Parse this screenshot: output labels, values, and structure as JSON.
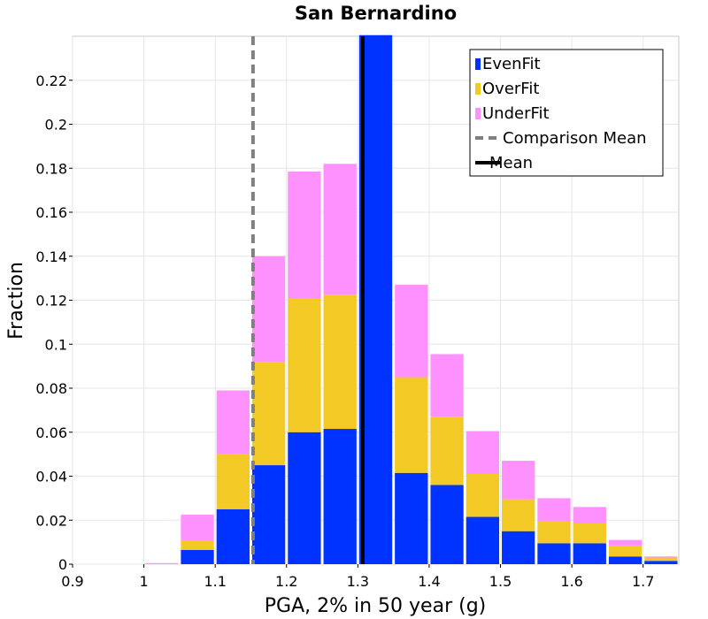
{
  "chart_data": {
    "type": "bar",
    "stacked": true,
    "title": "San Bernardino",
    "xlabel": "PGA, 2% in 50 year (g)",
    "ylabel": "Fraction",
    "xlim": [
      0.9,
      1.75
    ],
    "ylim": [
      0,
      0.24
    ],
    "grid": true,
    "legend_position": "top-right",
    "bin_width": 0.05,
    "x_ticks": [
      {
        "value": 0.9,
        "label": "0.9"
      },
      {
        "value": 1.0,
        "label": "1"
      },
      {
        "value": 1.1,
        "label": "1.1"
      },
      {
        "value": 1.2,
        "label": "1.2"
      },
      {
        "value": 1.3,
        "label": "1.3"
      },
      {
        "value": 1.4,
        "label": "1.4"
      },
      {
        "value": 1.5,
        "label": "1.5"
      },
      {
        "value": 1.6,
        "label": "1.6"
      },
      {
        "value": 1.7,
        "label": "1.7"
      }
    ],
    "y_ticks": [
      {
        "value": 0,
        "label": "0"
      },
      {
        "value": 0.02,
        "label": "0.02"
      },
      {
        "value": 0.04,
        "label": "0.04"
      },
      {
        "value": 0.06,
        "label": "0.06"
      },
      {
        "value": 0.08,
        "label": "0.08"
      },
      {
        "value": 0.1,
        "label": "0.1"
      },
      {
        "value": 0.12,
        "label": "0.12"
      },
      {
        "value": 0.14,
        "label": "0.14"
      },
      {
        "value": 0.16,
        "label": "0.16"
      },
      {
        "value": 0.18,
        "label": "0.18"
      },
      {
        "value": 0.2,
        "label": "0.2"
      },
      {
        "value": 0.22,
        "label": "0.22"
      }
    ],
    "bins": [
      0.975,
      1.025,
      1.075,
      1.125,
      1.175,
      1.225,
      1.275,
      1.325,
      1.375,
      1.425,
      1.475,
      1.525,
      1.575,
      1.625,
      1.675,
      1.725
    ],
    "series": [
      {
        "name": "EvenFit",
        "color": "#0033ff",
        "values": [
          0.0,
          0.0,
          0.0065,
          0.025,
          0.045,
          0.06,
          0.0615,
          0.2405,
          0.0415,
          0.036,
          0.0215,
          0.015,
          0.0095,
          0.0095,
          0.0035,
          0.0015
        ]
      },
      {
        "name": "OverFit",
        "color": "#f2c925",
        "values": [
          0.0,
          0.0,
          0.004,
          0.025,
          0.047,
          0.061,
          0.061,
          0.0,
          0.0435,
          0.031,
          0.0195,
          0.0145,
          0.01,
          0.009,
          0.005,
          0.0015
        ]
      },
      {
        "name": "UnderFit",
        "color": "#ff91ff",
        "values": [
          0.0,
          0.0005,
          0.012,
          0.029,
          0.048,
          0.0575,
          0.0595,
          0.0,
          0.042,
          0.0285,
          0.0195,
          0.0175,
          0.0105,
          0.0075,
          0.0025,
          0.0005
        ]
      }
    ],
    "lines": [
      {
        "name": "Comparison Mean",
        "x": 1.153,
        "color": "#808080",
        "style": "dashed"
      },
      {
        "name": "Mean",
        "x": 1.307,
        "color": "#000000",
        "style": "solid"
      }
    ],
    "legend": [
      "EvenFit",
      "OverFit",
      "UnderFit",
      "Comparison Mean",
      "Mean"
    ]
  }
}
